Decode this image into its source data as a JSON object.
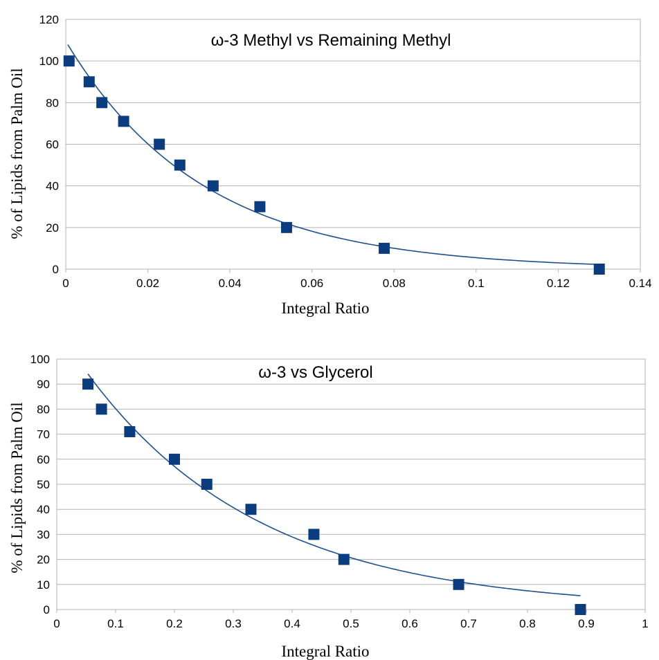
{
  "chart_data": [
    {
      "type": "scatter",
      "title": "ω-3 Methyl vs Remaining Methyl",
      "xlabel": "Integral Ratio",
      "ylabel": "% of Lipids from Palm Oil",
      "xlim": [
        0,
        0.14
      ],
      "ylim": [
        0,
        120
      ],
      "xticks": [
        "0",
        "0.02",
        "0.04",
        "0.06",
        "0.08",
        "0.1",
        "0.12",
        "0.14"
      ],
      "yticks": [
        "0",
        "20",
        "40",
        "60",
        "80",
        "100",
        "120"
      ],
      "grid": "horizontal",
      "marker_color": "#0b3d7e",
      "trendline": {
        "type": "exponential",
        "x_start": 0.0005,
        "x_end": 0.13,
        "color": "#1f4e8c"
      },
      "x": [
        0.0008,
        0.0057,
        0.0088,
        0.0141,
        0.0228,
        0.0278,
        0.0359,
        0.0473,
        0.0538,
        0.0776,
        0.13
      ],
      "y": [
        100,
        90,
        80,
        71,
        60,
        50,
        40,
        30,
        20,
        10,
        0
      ]
    },
    {
      "type": "scatter",
      "title": "ω-3 vs Glycerol",
      "xlabel": "Integral Ratio",
      "ylabel": "% of Lipids from Palm Oil",
      "xlim": [
        0,
        1
      ],
      "ylim": [
        0,
        100
      ],
      "xticks": [
        "0",
        "0.1",
        "0.2",
        "0.3",
        "0.4",
        "0.5",
        "0.6",
        "0.7",
        "0.8",
        "0.9",
        "1"
      ],
      "yticks": [
        "0",
        "10",
        "20",
        "30",
        "40",
        "50",
        "60",
        "70",
        "80",
        "90",
        "100"
      ],
      "grid": "horizontal",
      "marker_color": "#0b3d7e",
      "trendline": {
        "type": "exponential",
        "x_start": 0.053,
        "x_end": 0.89,
        "color": "#1f4e8c"
      },
      "x": [
        0.053,
        0.076,
        0.124,
        0.2,
        0.255,
        0.33,
        0.437,
        0.488,
        0.683,
        0.89
      ],
      "y": [
        90,
        80,
        71,
        60,
        50,
        40,
        30,
        20,
        10,
        0
      ]
    }
  ]
}
